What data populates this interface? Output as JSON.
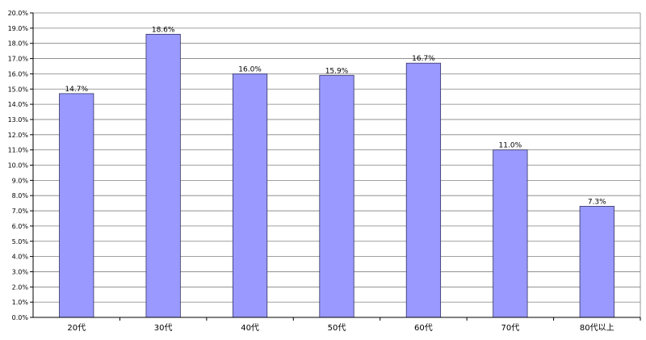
{
  "chart_data": {
    "type": "bar",
    "categories": [
      "20代",
      "30代",
      "40代",
      "50代",
      "60代",
      "70代",
      "80代以上"
    ],
    "values": [
      14.7,
      18.6,
      16.0,
      15.9,
      16.7,
      11.0,
      7.3
    ],
    "data_labels": [
      "14.7%",
      "18.6%",
      "16.0%",
      "15.9%",
      "16.7%",
      "11.0%",
      "7.3%"
    ],
    "y_ticks": [
      "0.0%",
      "1.0%",
      "2.0%",
      "3.0%",
      "4.0%",
      "5.0%",
      "6.0%",
      "7.0%",
      "8.0%",
      "9.0%",
      "10.0%",
      "11.0%",
      "12.0%",
      "13.0%",
      "14.0%",
      "15.0%",
      "16.0%",
      "17.0%",
      "18.0%",
      "19.0%",
      "20.0%"
    ],
    "ylim": [
      0,
      20
    ],
    "grid": true,
    "legend": "none",
    "colors": {
      "bar": "#9999ff",
      "bar_stroke": "#333366",
      "grid": "#808080",
      "axis": "#000000",
      "plot_border": "#808080"
    }
  }
}
